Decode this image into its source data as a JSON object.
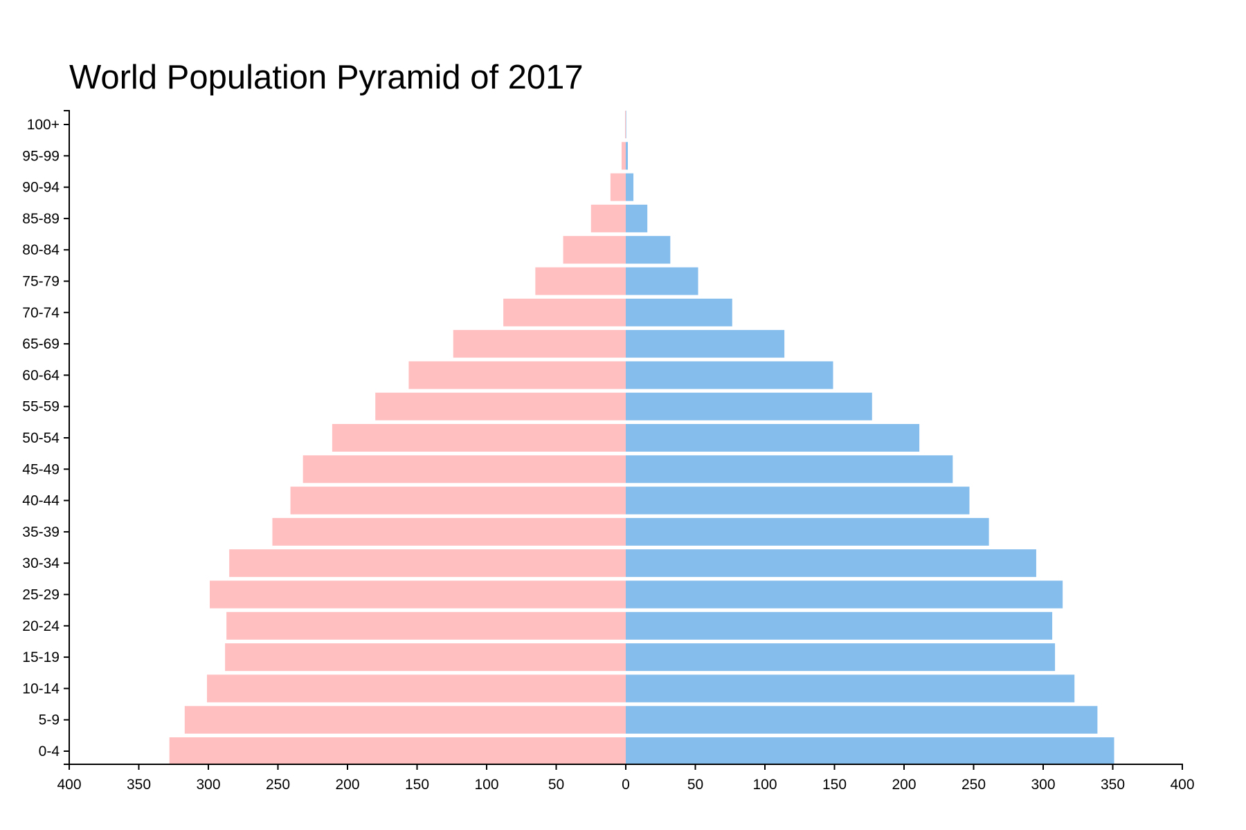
{
  "chart_data": {
    "type": "bar",
    "title": "World Population Pyramid of 2017",
    "xlabel": "",
    "ylabel": "",
    "categories": [
      "100+",
      "95-99",
      "90-94",
      "85-89",
      "80-84",
      "75-79",
      "70-74",
      "65-69",
      "60-64",
      "55-59",
      "50-54",
      "45-49",
      "40-44",
      "35-39",
      "30-34",
      "25-29",
      "20-24",
      "15-19",
      "10-14",
      "5-9",
      "0-4"
    ],
    "series": [
      {
        "color": "#ffbfc1",
        "side": "left",
        "values": [
          0.5,
          3,
          11,
          25,
          45,
          65,
          88,
          124,
          156,
          180,
          211,
          232,
          241,
          254,
          285,
          299,
          287,
          288,
          301,
          317,
          328
        ]
      },
      {
        "color": "#85bdec",
        "side": "right",
        "values": [
          0.3,
          1.5,
          5.5,
          15.5,
          32,
          52,
          76.5,
          114,
          149,
          177,
          211,
          235,
          247,
          261,
          295,
          314,
          306.5,
          308.5,
          322.5,
          339,
          351
        ]
      }
    ],
    "xlim": [
      -400,
      400
    ],
    "xticks": [
      {
        "value": -400,
        "label": "400"
      },
      {
        "value": -350,
        "label": "350"
      },
      {
        "value": -300,
        "label": "300"
      },
      {
        "value": -250,
        "label": "250"
      },
      {
        "value": -200,
        "label": "200"
      },
      {
        "value": -150,
        "label": "150"
      },
      {
        "value": -100,
        "label": "100"
      },
      {
        "value": -50,
        "label": "50"
      },
      {
        "value": 0,
        "label": "0"
      },
      {
        "value": 50,
        "label": "50"
      },
      {
        "value": 100,
        "label": "100"
      },
      {
        "value": 150,
        "label": "150"
      },
      {
        "value": 200,
        "label": "200"
      },
      {
        "value": 250,
        "label": "250"
      },
      {
        "value": 300,
        "label": "300"
      },
      {
        "value": 350,
        "label": "350"
      },
      {
        "value": 400,
        "label": "400"
      }
    ],
    "grid": false,
    "legend": "none"
  }
}
